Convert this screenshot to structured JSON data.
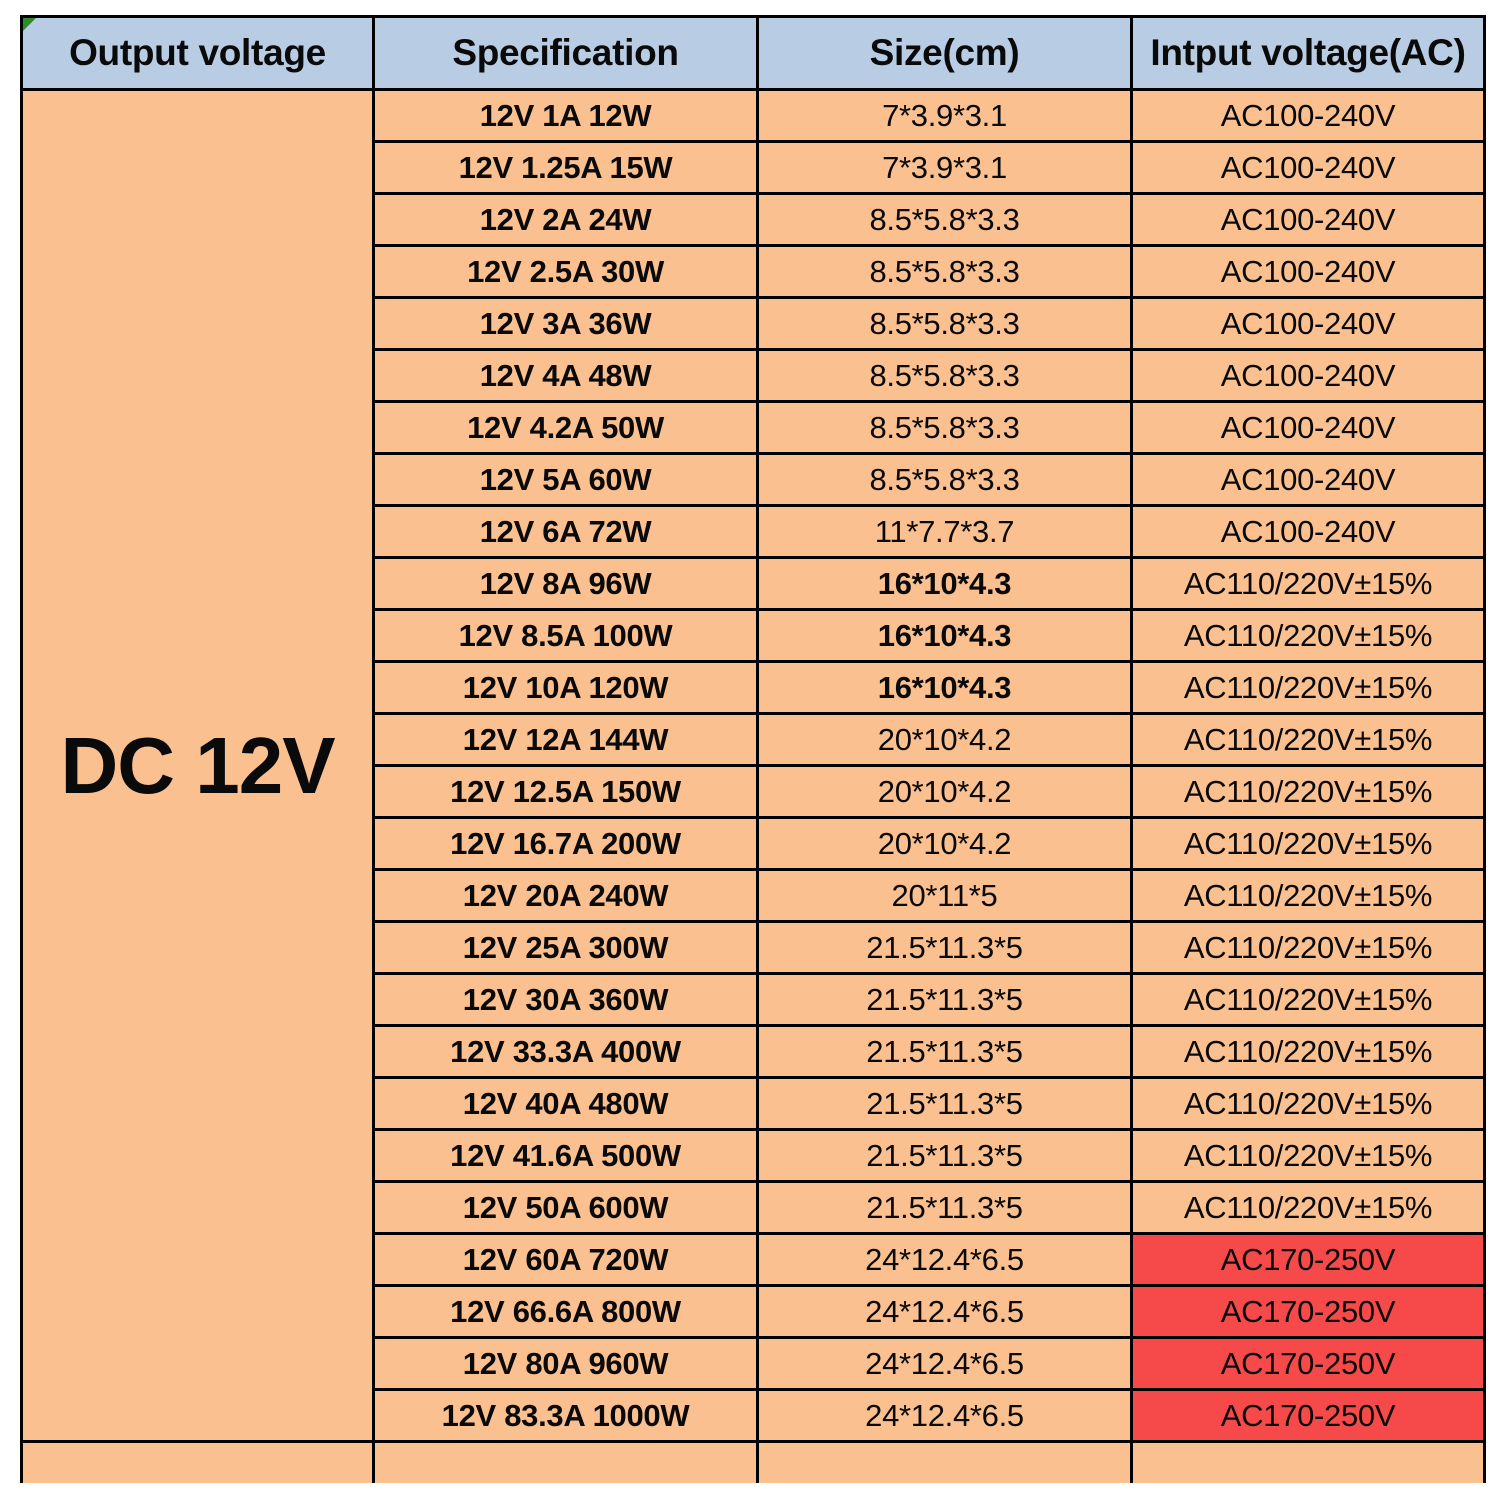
{
  "table": {
    "headers": [
      "Output voltage",
      "Specification",
      "Size(cm)",
      "Intput voltage(AC)"
    ],
    "output_voltage": "DC 12V",
    "rows": [
      {
        "spec": "12V 1A 12W",
        "size": "7*3.9*3.1",
        "input": "AC100-240V",
        "size_bold": false,
        "input_red": false
      },
      {
        "spec": "12V 1.25A 15W",
        "size": "7*3.9*3.1",
        "input": "AC100-240V",
        "size_bold": false,
        "input_red": false
      },
      {
        "spec": "12V 2A 24W",
        "size": "8.5*5.8*3.3",
        "input": "AC100-240V",
        "size_bold": false,
        "input_red": false
      },
      {
        "spec": "12V 2.5A 30W",
        "size": "8.5*5.8*3.3",
        "input": "AC100-240V",
        "size_bold": false,
        "input_red": false
      },
      {
        "spec": "12V 3A 36W",
        "size": "8.5*5.8*3.3",
        "input": "AC100-240V",
        "size_bold": false,
        "input_red": false
      },
      {
        "spec": "12V 4A 48W",
        "size": "8.5*5.8*3.3",
        "input": "AC100-240V",
        "size_bold": false,
        "input_red": false
      },
      {
        "spec": "12V 4.2A 50W",
        "size": "8.5*5.8*3.3",
        "input": "AC100-240V",
        "size_bold": false,
        "input_red": false
      },
      {
        "spec": "12V 5A 60W",
        "size": "8.5*5.8*3.3",
        "input": "AC100-240V",
        "size_bold": false,
        "input_red": false
      },
      {
        "spec": "12V 6A 72W",
        "size": "11*7.7*3.7",
        "input": "AC100-240V",
        "size_bold": false,
        "input_red": false
      },
      {
        "spec": "12V 8A 96W",
        "size": "16*10*4.3",
        "input": "AC110/220V±15%",
        "size_bold": true,
        "input_red": false
      },
      {
        "spec": "12V 8.5A 100W",
        "size": "16*10*4.3",
        "input": "AC110/220V±15%",
        "size_bold": true,
        "input_red": false
      },
      {
        "spec": "12V 10A 120W",
        "size": "16*10*4.3",
        "input": "AC110/220V±15%",
        "size_bold": true,
        "input_red": false
      },
      {
        "spec": "12V 12A 144W",
        "size": "20*10*4.2",
        "input": "AC110/220V±15%",
        "size_bold": false,
        "input_red": false
      },
      {
        "spec": "12V 12.5A 150W",
        "size": "20*10*4.2",
        "input": "AC110/220V±15%",
        "size_bold": false,
        "input_red": false
      },
      {
        "spec": "12V 16.7A 200W",
        "size": "20*10*4.2",
        "input": "AC110/220V±15%",
        "size_bold": false,
        "input_red": false
      },
      {
        "spec": "12V 20A 240W",
        "size": "20*11*5",
        "input": "AC110/220V±15%",
        "size_bold": false,
        "input_red": false
      },
      {
        "spec": "12V 25A 300W",
        "size": "21.5*11.3*5",
        "input": "AC110/220V±15%",
        "size_bold": false,
        "input_red": false
      },
      {
        "spec": "12V 30A 360W",
        "size": "21.5*11.3*5",
        "input": "AC110/220V±15%",
        "size_bold": false,
        "input_red": false
      },
      {
        "spec": "12V 33.3A 400W",
        "size": "21.5*11.3*5",
        "input": "AC110/220V±15%",
        "size_bold": false,
        "input_red": false
      },
      {
        "spec": "12V 40A 480W",
        "size": "21.5*11.3*5",
        "input": "AC110/220V±15%",
        "size_bold": false,
        "input_red": false
      },
      {
        "spec": "12V 41.6A 500W",
        "size": "21.5*11.3*5",
        "input": "AC110/220V±15%",
        "size_bold": false,
        "input_red": false
      },
      {
        "spec": "12V 50A 600W",
        "size": "21.5*11.3*5",
        "input": "AC110/220V±15%",
        "size_bold": false,
        "input_red": false
      },
      {
        "spec": "12V 60A 720W",
        "size": "24*12.4*6.5",
        "input": "AC170-250V",
        "size_bold": false,
        "input_red": true
      },
      {
        "spec": "12V 66.6A 800W",
        "size": "24*12.4*6.5",
        "input": "AC170-250V",
        "size_bold": false,
        "input_red": true
      },
      {
        "spec": "12V 80A 960W",
        "size": "24*12.4*6.5",
        "input": "AC170-250V",
        "size_bold": false,
        "input_red": true
      },
      {
        "spec": "12V 83.3A 1000W",
        "size": "24*12.4*6.5",
        "input": "AC170-250V",
        "size_bold": false,
        "input_red": true
      }
    ],
    "colors": {
      "header_bg": "#b8cce4",
      "body_bg": "#fac090",
      "red_bg": "#f64a4a",
      "border": "#000000",
      "corner_marker": "#2e8b2e"
    }
  }
}
